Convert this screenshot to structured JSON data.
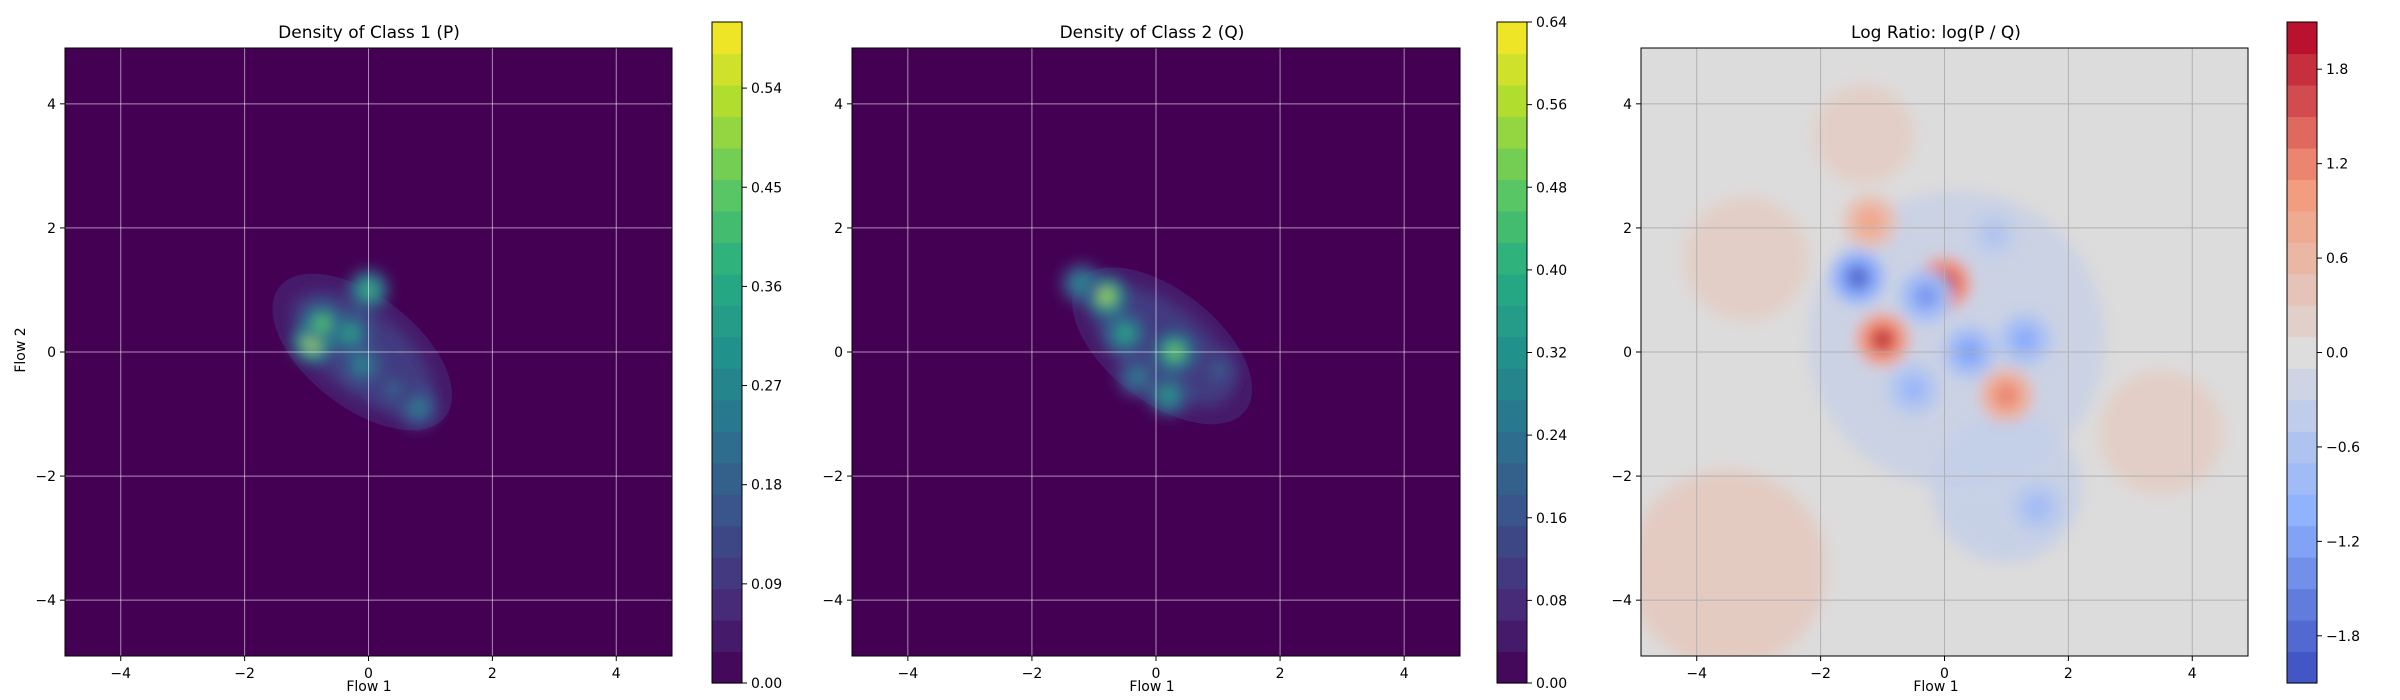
{
  "chart_data": [
    {
      "type": "heatmap",
      "title": "Density of Class 1 (P)",
      "xlabel": "Flow 1",
      "ylabel": "Flow 2",
      "xlim": [
        -4.9,
        4.9
      ],
      "ylim": [
        -4.9,
        4.9
      ],
      "xticks": [
        -4,
        -2,
        0,
        2,
        4
      ],
      "yticks": [
        -4,
        -2,
        0,
        2,
        4
      ],
      "grid": true,
      "colormap": "viridis",
      "colorbar": {
        "range": [
          0.0,
          0.6
        ],
        "ticks": [
          "0.00",
          "0.09",
          "0.18",
          "0.27",
          "0.36",
          "0.45",
          "0.54"
        ]
      },
      "background_color": "#440154",
      "cloud_center": [
        -0.1,
        0.0
      ],
      "peaks": [
        {
          "x": -0.9,
          "y": 0.15,
          "value": 0.54
        },
        {
          "x": -0.75,
          "y": 0.45,
          "value": 0.45
        },
        {
          "x": 0.0,
          "y": 1.0,
          "value": 0.4
        },
        {
          "x": -0.3,
          "y": 0.3,
          "value": 0.36
        },
        {
          "x": -0.1,
          "y": -0.2,
          "value": 0.3
        },
        {
          "x": 0.8,
          "y": -0.9,
          "value": 0.27
        },
        {
          "x": 0.4,
          "y": -0.6,
          "value": 0.2
        }
      ]
    },
    {
      "type": "heatmap",
      "title": "Density of Class 2 (Q)",
      "xlabel": "Flow 1",
      "ylabel": "",
      "xlim": [
        -4.9,
        4.9
      ],
      "ylim": [
        -4.9,
        4.9
      ],
      "xticks": [
        -4,
        -2,
        0,
        2,
        4
      ],
      "yticks": [
        -4,
        -2,
        0,
        2,
        4
      ],
      "grid": true,
      "colormap": "viridis",
      "colorbar": {
        "range": [
          0.0,
          0.64
        ],
        "ticks": [
          "0.00",
          "0.08",
          "0.16",
          "0.24",
          "0.32",
          "0.40",
          "0.48",
          "0.56",
          "0.64"
        ]
      },
      "background_color": "#440154",
      "cloud_center": [
        0.1,
        0.1
      ],
      "peaks": [
        {
          "x": -0.8,
          "y": 0.9,
          "value": 0.56
        },
        {
          "x": 0.3,
          "y": 0.0,
          "value": 0.5
        },
        {
          "x": -0.5,
          "y": 0.3,
          "value": 0.4
        },
        {
          "x": 0.2,
          "y": -0.7,
          "value": 0.36
        },
        {
          "x": -1.2,
          "y": 1.1,
          "value": 0.32
        },
        {
          "x": -0.3,
          "y": -0.4,
          "value": 0.28
        },
        {
          "x": 1.0,
          "y": -0.3,
          "value": 0.2
        }
      ]
    },
    {
      "type": "heatmap",
      "title": "Log Ratio: log(P / Q)",
      "xlabel": "Flow 1",
      "ylabel": "",
      "xlim": [
        -4.9,
        4.9
      ],
      "ylim": [
        -4.9,
        4.9
      ],
      "xticks": [
        -4,
        -2,
        0,
        2,
        4
      ],
      "yticks": [
        -4,
        -2,
        0,
        2,
        4
      ],
      "grid": true,
      "colormap": "coolwarm",
      "colorbar": {
        "range": [
          -2.1,
          2.1
        ],
        "ticks": [
          "−1.8",
          "−1.2",
          "−0.6",
          "0.0",
          "0.6",
          "1.2",
          "1.8"
        ]
      },
      "background_color": "#dddcdc",
      "features": [
        {
          "x": 0.0,
          "y": 1.1,
          "value": 1.9
        },
        {
          "x": -1.0,
          "y": 0.2,
          "value": 1.8
        },
        {
          "x": 1.0,
          "y": -0.7,
          "value": 1.2
        },
        {
          "x": -1.2,
          "y": 2.1,
          "value": 0.9
        },
        {
          "x": -1.4,
          "y": 1.2,
          "value": -1.8
        },
        {
          "x": -0.3,
          "y": 0.9,
          "value": -1.3
        },
        {
          "x": 0.4,
          "y": 0.0,
          "value": -1.2
        },
        {
          "x": 1.3,
          "y": 0.2,
          "value": -1.1
        },
        {
          "x": -0.5,
          "y": -0.6,
          "value": -0.9
        },
        {
          "x": 1.5,
          "y": -2.5,
          "value": -0.8
        },
        {
          "x": 0.8,
          "y": 1.9,
          "value": -0.6
        }
      ]
    }
  ]
}
